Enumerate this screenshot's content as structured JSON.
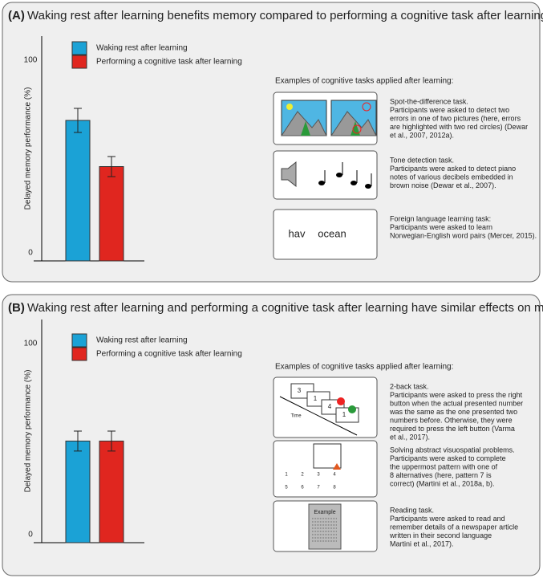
{
  "chart_data": [
    {
      "type": "bar",
      "label": "(A)",
      "title": "Waking rest after learning benefits memory compared to performing a cognitive task after learning",
      "ylabel": "Delayed memory performance (%)",
      "categories": [
        null
      ],
      "ylim": [
        0,
        112
      ],
      "yticks": [
        0,
        100
      ],
      "series": [
        {
          "name": "Waking rest after learning",
          "color": "#1ba2d6",
          "values": [
            70
          ],
          "errors": [
            6
          ]
        },
        {
          "name": "Performing a cognitive task after learning",
          "color": "#e0261f",
          "values": [
            47
          ],
          "errors": [
            5
          ]
        }
      ],
      "examples_heading": "Examples of cognitive tasks applied after learning:",
      "examples": [
        {
          "lines": [
            "Spot-the-difference task.",
            "Participants were asked to detect two",
            "errors in one of two pictures (here, errors",
            "are highlighted with two red circles) (Dewar",
            "et al., 2007, 2012a)."
          ],
          "icon_texts": []
        },
        {
          "lines": [
            "Tone detection task.",
            "Participants were asked to detect piano",
            "notes of various decibels embedded in",
            "brown noise (Dewar et al., 2007)."
          ],
          "icon_texts": []
        },
        {
          "lines": [
            "Foreign language learning task:",
            "Participants were asked to learn",
            "Norwegian-English word pairs (Mercer, 2015)."
          ],
          "icon_texts": [
            "hav",
            "ocean"
          ]
        }
      ]
    },
    {
      "type": "bar",
      "label": "(B)",
      "title": "Waking rest after learning and performing a cognitive task after learning have similar effects on memory",
      "ylabel": "Delayed memory performance (%)",
      "categories": [
        null
      ],
      "ylim": [
        0,
        112
      ],
      "yticks": [
        0,
        100
      ],
      "series": [
        {
          "name": "Waking rest after learning",
          "color": "#1ba2d6",
          "values": [
            51
          ],
          "errors": [
            5
          ]
        },
        {
          "name": "Performing a cognitive task after learning",
          "color": "#e0261f",
          "values": [
            51
          ],
          "errors": [
            5
          ]
        }
      ],
      "examples_heading": "Examples of cognitive tasks applied after learning:",
      "examples": [
        {
          "lines": [
            "2-back task.",
            "Participants were asked to press the right",
            "button when the actual presented number",
            "was the same as the one presented two",
            "numbers before. Otherwise, they were",
            "required to press the left button (Varma",
            "et al., 2017)."
          ],
          "icon_texts": [
            "3",
            "1",
            "4",
            "1",
            "Time"
          ]
        },
        {
          "lines": [
            "Solving abstract visuospatial problems.",
            "Participants were asked to complete",
            "the uppermost pattern with one of",
            "8 alternatives (here, pattern 7 is",
            "correct) (Martini et al., 2018a, b)."
          ],
          "icon_texts": [
            "1",
            "2",
            "3",
            "4",
            "5",
            "6",
            "7",
            "8"
          ]
        },
        {
          "lines": [
            "Reading task.",
            "Participants were asked to read and",
            "remember details of a newspaper article",
            "written in their second language",
            "Martini et al., 2017)."
          ],
          "icon_texts": [
            "Example"
          ]
        }
      ]
    }
  ]
}
